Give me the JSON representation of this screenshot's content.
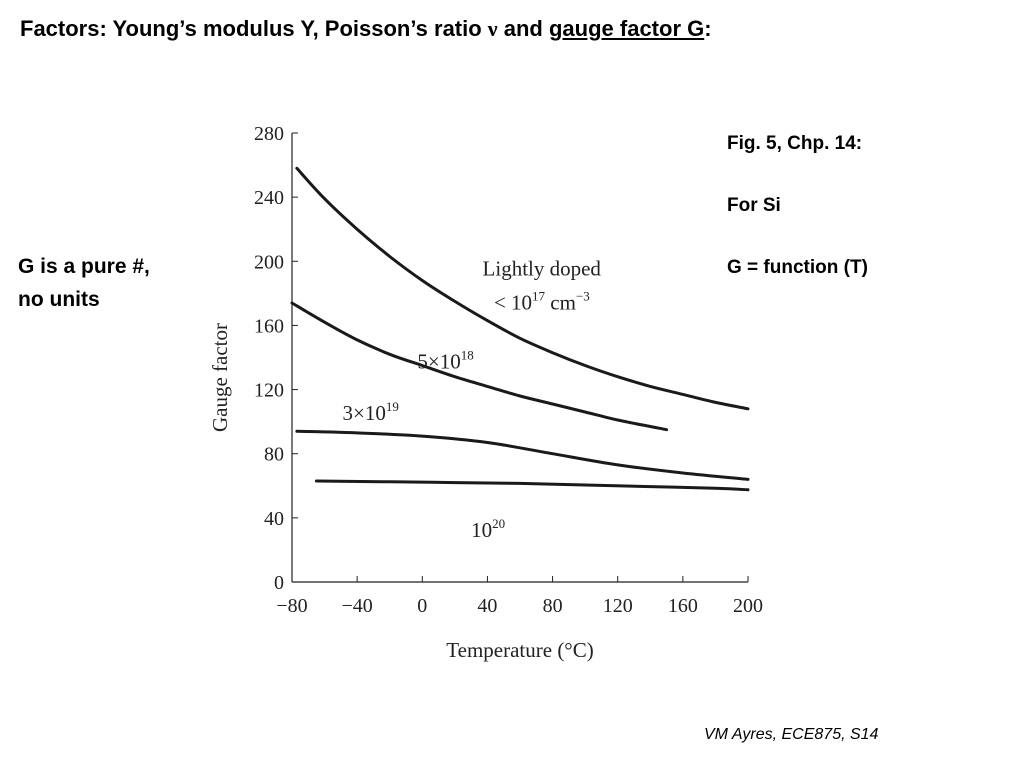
{
  "slide": {
    "title_prefix": "Factors: Young’s modulus Y, Poisson’s ratio ",
    "title_nu": "ν",
    "title_and": " and ",
    "title_gauge": "gauge factor G",
    "title_colon": ":",
    "side_note": [
      "G is a pure #,",
      "no units"
    ],
    "fig_notes": [
      "Fig. 5, Chp. 14:",
      "For Si",
      "G = function (T)"
    ],
    "footer": "VM Ayres, ECE875, S14"
  },
  "colors": {
    "text": "#000000",
    "background": "#ffffff",
    "curve": "#1a1a1a"
  },
  "chart_data": {
    "type": "line",
    "xlabel": "Temperature (°C)",
    "ylabel": "Gauge factor",
    "xlim": [
      -80,
      200
    ],
    "ylim": [
      0,
      280
    ],
    "xticks": [
      -80,
      -40,
      0,
      40,
      80,
      120,
      160,
      200
    ],
    "yticks": [
      0,
      40,
      80,
      120,
      160,
      200,
      240,
      280
    ],
    "grid": false,
    "series": [
      {
        "name": "Lightly doped < 10^17 cm^-3",
        "label_line1": "Lightly doped",
        "label_line2_base": "< 10",
        "label_line2_exp": "17",
        "label_line2_unit": " cm",
        "label_line2_unit_exp": "−3",
        "x": [
          -77,
          -60,
          -40,
          -20,
          0,
          20,
          40,
          60,
          80,
          100,
          120,
          140,
          160,
          180,
          200
        ],
        "y": [
          258,
          239,
          220,
          203,
          188,
          175,
          163,
          152,
          143,
          135,
          128,
          122,
          117,
          112,
          108
        ]
      },
      {
        "name": "5×10^18",
        "label_base": "5×10",
        "label_exp": "18",
        "x": [
          -80,
          -60,
          -40,
          -20,
          0,
          20,
          40,
          60,
          80,
          100,
          120,
          140,
          150
        ],
        "y": [
          174,
          162,
          151,
          142,
          135,
          128,
          122,
          116,
          111,
          106,
          101,
          97,
          95
        ]
      },
      {
        "name": "3×10^19",
        "label_base": "3×10",
        "label_exp": "19",
        "x": [
          -77,
          -40,
          0,
          40,
          80,
          120,
          160,
          200
        ],
        "y": [
          94,
          93,
          91,
          87,
          80,
          73,
          68,
          64
        ]
      },
      {
        "name": "10^20",
        "label_base": "10",
        "label_exp": "20",
        "x": [
          -65,
          -20,
          20,
          60,
          100,
          140,
          180,
          200
        ],
        "y": [
          63,
          62.5,
          62,
          61.5,
          60.5,
          59.5,
          58.5,
          57.5
        ]
      }
    ]
  }
}
